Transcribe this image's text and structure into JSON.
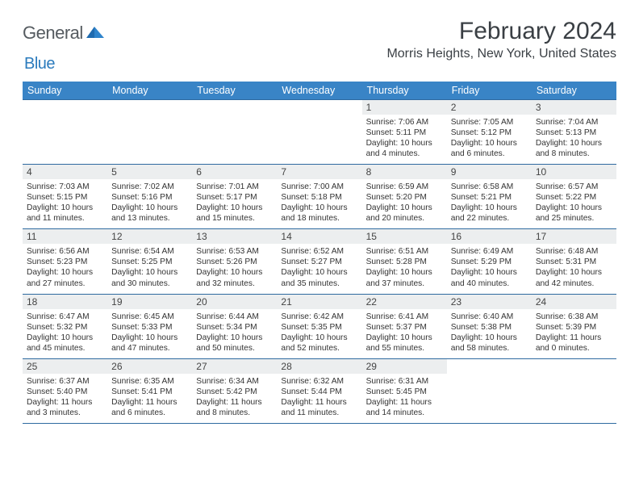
{
  "logo": {
    "text1": "General",
    "text2": "Blue"
  },
  "header": {
    "title": "February 2024",
    "subtitle": "Morris Heights, New York, United States"
  },
  "calendar": {
    "day_headers": [
      "Sunday",
      "Monday",
      "Tuesday",
      "Wednesday",
      "Thursday",
      "Friday",
      "Saturday"
    ],
    "header_bg": "#3984c6",
    "header_fg": "#ffffff",
    "row_border": "#2f6aa0",
    "daynum_bg": "#eceeef",
    "weeks": [
      [
        {
          "n": "",
          "sr": "",
          "ss": "",
          "dl": ""
        },
        {
          "n": "",
          "sr": "",
          "ss": "",
          "dl": ""
        },
        {
          "n": "",
          "sr": "",
          "ss": "",
          "dl": ""
        },
        {
          "n": "",
          "sr": "",
          "ss": "",
          "dl": ""
        },
        {
          "n": "1",
          "sr": "Sunrise: 7:06 AM",
          "ss": "Sunset: 5:11 PM",
          "dl": "Daylight: 10 hours and 4 minutes."
        },
        {
          "n": "2",
          "sr": "Sunrise: 7:05 AM",
          "ss": "Sunset: 5:12 PM",
          "dl": "Daylight: 10 hours and 6 minutes."
        },
        {
          "n": "3",
          "sr": "Sunrise: 7:04 AM",
          "ss": "Sunset: 5:13 PM",
          "dl": "Daylight: 10 hours and 8 minutes."
        }
      ],
      [
        {
          "n": "4",
          "sr": "Sunrise: 7:03 AM",
          "ss": "Sunset: 5:15 PM",
          "dl": "Daylight: 10 hours and 11 minutes."
        },
        {
          "n": "5",
          "sr": "Sunrise: 7:02 AM",
          "ss": "Sunset: 5:16 PM",
          "dl": "Daylight: 10 hours and 13 minutes."
        },
        {
          "n": "6",
          "sr": "Sunrise: 7:01 AM",
          "ss": "Sunset: 5:17 PM",
          "dl": "Daylight: 10 hours and 15 minutes."
        },
        {
          "n": "7",
          "sr": "Sunrise: 7:00 AM",
          "ss": "Sunset: 5:18 PM",
          "dl": "Daylight: 10 hours and 18 minutes."
        },
        {
          "n": "8",
          "sr": "Sunrise: 6:59 AM",
          "ss": "Sunset: 5:20 PM",
          "dl": "Daylight: 10 hours and 20 minutes."
        },
        {
          "n": "9",
          "sr": "Sunrise: 6:58 AM",
          "ss": "Sunset: 5:21 PM",
          "dl": "Daylight: 10 hours and 22 minutes."
        },
        {
          "n": "10",
          "sr": "Sunrise: 6:57 AM",
          "ss": "Sunset: 5:22 PM",
          "dl": "Daylight: 10 hours and 25 minutes."
        }
      ],
      [
        {
          "n": "11",
          "sr": "Sunrise: 6:56 AM",
          "ss": "Sunset: 5:23 PM",
          "dl": "Daylight: 10 hours and 27 minutes."
        },
        {
          "n": "12",
          "sr": "Sunrise: 6:54 AM",
          "ss": "Sunset: 5:25 PM",
          "dl": "Daylight: 10 hours and 30 minutes."
        },
        {
          "n": "13",
          "sr": "Sunrise: 6:53 AM",
          "ss": "Sunset: 5:26 PM",
          "dl": "Daylight: 10 hours and 32 minutes."
        },
        {
          "n": "14",
          "sr": "Sunrise: 6:52 AM",
          "ss": "Sunset: 5:27 PM",
          "dl": "Daylight: 10 hours and 35 minutes."
        },
        {
          "n": "15",
          "sr": "Sunrise: 6:51 AM",
          "ss": "Sunset: 5:28 PM",
          "dl": "Daylight: 10 hours and 37 minutes."
        },
        {
          "n": "16",
          "sr": "Sunrise: 6:49 AM",
          "ss": "Sunset: 5:29 PM",
          "dl": "Daylight: 10 hours and 40 minutes."
        },
        {
          "n": "17",
          "sr": "Sunrise: 6:48 AM",
          "ss": "Sunset: 5:31 PM",
          "dl": "Daylight: 10 hours and 42 minutes."
        }
      ],
      [
        {
          "n": "18",
          "sr": "Sunrise: 6:47 AM",
          "ss": "Sunset: 5:32 PM",
          "dl": "Daylight: 10 hours and 45 minutes."
        },
        {
          "n": "19",
          "sr": "Sunrise: 6:45 AM",
          "ss": "Sunset: 5:33 PM",
          "dl": "Daylight: 10 hours and 47 minutes."
        },
        {
          "n": "20",
          "sr": "Sunrise: 6:44 AM",
          "ss": "Sunset: 5:34 PM",
          "dl": "Daylight: 10 hours and 50 minutes."
        },
        {
          "n": "21",
          "sr": "Sunrise: 6:42 AM",
          "ss": "Sunset: 5:35 PM",
          "dl": "Daylight: 10 hours and 52 minutes."
        },
        {
          "n": "22",
          "sr": "Sunrise: 6:41 AM",
          "ss": "Sunset: 5:37 PM",
          "dl": "Daylight: 10 hours and 55 minutes."
        },
        {
          "n": "23",
          "sr": "Sunrise: 6:40 AM",
          "ss": "Sunset: 5:38 PM",
          "dl": "Daylight: 10 hours and 58 minutes."
        },
        {
          "n": "24",
          "sr": "Sunrise: 6:38 AM",
          "ss": "Sunset: 5:39 PM",
          "dl": "Daylight: 11 hours and 0 minutes."
        }
      ],
      [
        {
          "n": "25",
          "sr": "Sunrise: 6:37 AM",
          "ss": "Sunset: 5:40 PM",
          "dl": "Daylight: 11 hours and 3 minutes."
        },
        {
          "n": "26",
          "sr": "Sunrise: 6:35 AM",
          "ss": "Sunset: 5:41 PM",
          "dl": "Daylight: 11 hours and 6 minutes."
        },
        {
          "n": "27",
          "sr": "Sunrise: 6:34 AM",
          "ss": "Sunset: 5:42 PM",
          "dl": "Daylight: 11 hours and 8 minutes."
        },
        {
          "n": "28",
          "sr": "Sunrise: 6:32 AM",
          "ss": "Sunset: 5:44 PM",
          "dl": "Daylight: 11 hours and 11 minutes."
        },
        {
          "n": "29",
          "sr": "Sunrise: 6:31 AM",
          "ss": "Sunset: 5:45 PM",
          "dl": "Daylight: 11 hours and 14 minutes."
        },
        {
          "n": "",
          "sr": "",
          "ss": "",
          "dl": ""
        },
        {
          "n": "",
          "sr": "",
          "ss": "",
          "dl": ""
        }
      ]
    ]
  }
}
